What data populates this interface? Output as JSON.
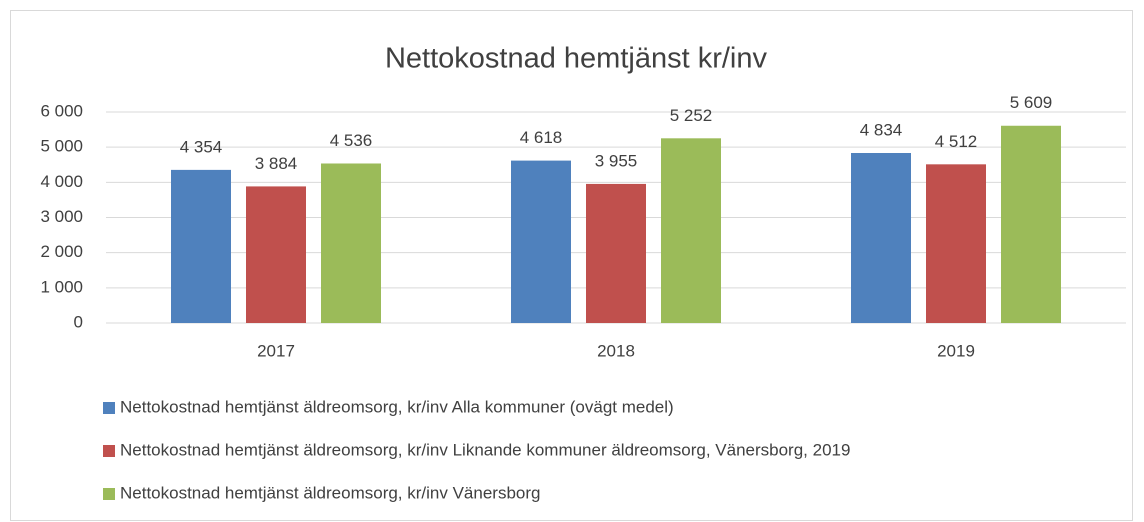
{
  "chart_data": {
    "type": "bar",
    "title": "Nettokostnad hemtjänst kr/inv",
    "categories": [
      "2017",
      "2018",
      "2019"
    ],
    "series": [
      {
        "name": "Nettokostnad hemtjänst äldreomsorg, kr/inv Alla kommuner (ovägt medel)",
        "color": "#4f81bd",
        "values": [
          4354,
          4618,
          4834
        ],
        "value_labels": [
          "4 354",
          "4 618",
          "4 834"
        ]
      },
      {
        "name": "Nettokostnad hemtjänst äldreomsorg, kr/inv Liknande kommuner äldreomsorg, Vänersborg, 2019",
        "color": "#c0504d",
        "values": [
          3884,
          3955,
          4512
        ],
        "value_labels": [
          "3 884",
          "3 955",
          "4 512"
        ]
      },
      {
        "name": "Nettokostnad hemtjänst äldreomsorg, kr/inv Vänersborg",
        "color": "#9bbb59",
        "values": [
          4536,
          5252,
          5609
        ],
        "value_labels": [
          "4 536",
          "5 252",
          "5 609"
        ]
      }
    ],
    "ylim": [
      0,
      6000
    ],
    "yticks": [
      0,
      {
        "value": 1000,
        "label": "1 000"
      },
      {
        "value": 2000,
        "label": "2 000"
      },
      {
        "value": 3000,
        "label": "3 000"
      },
      {
        "value": 4000,
        "label": "4 000"
      },
      {
        "value": 5000,
        "label": "5 000"
      },
      {
        "value": 6000,
        "label": "6 000"
      }
    ],
    "grid": true,
    "legend": "bottom"
  }
}
